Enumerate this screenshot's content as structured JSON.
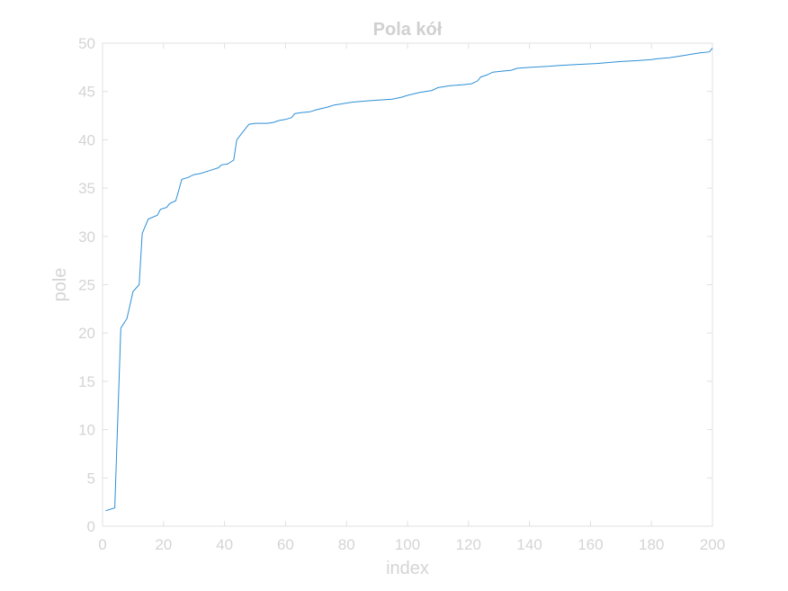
{
  "chart_data": {
    "type": "line",
    "title": "Pola kół",
    "xlabel": "index",
    "ylabel": "pole",
    "xlim": [
      0,
      200
    ],
    "ylim": [
      0,
      50
    ],
    "xticks": [
      0,
      20,
      40,
      60,
      80,
      100,
      120,
      140,
      160,
      180,
      200
    ],
    "yticks": [
      0,
      5,
      10,
      15,
      20,
      25,
      30,
      35,
      40,
      45,
      50
    ],
    "grid": false,
    "colors": {
      "line": "#2d8fd5",
      "axes": "#e0e0e0",
      "text": "#d4d4d4",
      "title": "#d0d0d0"
    },
    "series": [
      {
        "x": [
          1,
          4,
          6,
          8,
          10,
          12,
          13,
          15,
          18,
          19,
          21,
          22,
          24,
          25,
          26,
          28,
          30,
          32,
          34,
          36,
          38,
          39,
          41,
          43,
          44,
          46,
          48,
          50,
          54,
          56,
          58,
          60,
          62,
          63,
          65,
          68,
          70,
          74,
          76,
          78,
          82,
          86,
          90,
          95,
          98,
          100,
          104,
          108,
          110,
          114,
          118,
          121,
          123,
          124,
          126,
          128,
          131,
          134,
          136,
          140,
          146,
          150,
          156,
          162,
          166,
          170,
          176,
          180,
          182,
          186,
          190,
          194,
          196,
          199,
          200
        ],
        "y": [
          1.6,
          1.9,
          20.5,
          21.5,
          24.3,
          25.0,
          30.3,
          31.8,
          32.2,
          32.8,
          33.0,
          33.4,
          33.7,
          34.8,
          35.9,
          36.1,
          36.4,
          36.5,
          36.7,
          36.9,
          37.1,
          37.4,
          37.5,
          37.9,
          40.0,
          40.8,
          41.6,
          41.7,
          41.7,
          41.8,
          42.0,
          42.1,
          42.3,
          42.7,
          42.8,
          42.9,
          43.1,
          43.4,
          43.6,
          43.7,
          43.9,
          44.0,
          44.1,
          44.2,
          44.4,
          44.6,
          44.9,
          45.1,
          45.4,
          45.6,
          45.7,
          45.8,
          46.1,
          46.5,
          46.7,
          47.0,
          47.1,
          47.2,
          47.4,
          47.5,
          47.6,
          47.7,
          47.8,
          47.9,
          48.0,
          48.1,
          48.2,
          48.3,
          48.4,
          48.5,
          48.7,
          48.9,
          49.0,
          49.1,
          49.5
        ]
      }
    ]
  }
}
